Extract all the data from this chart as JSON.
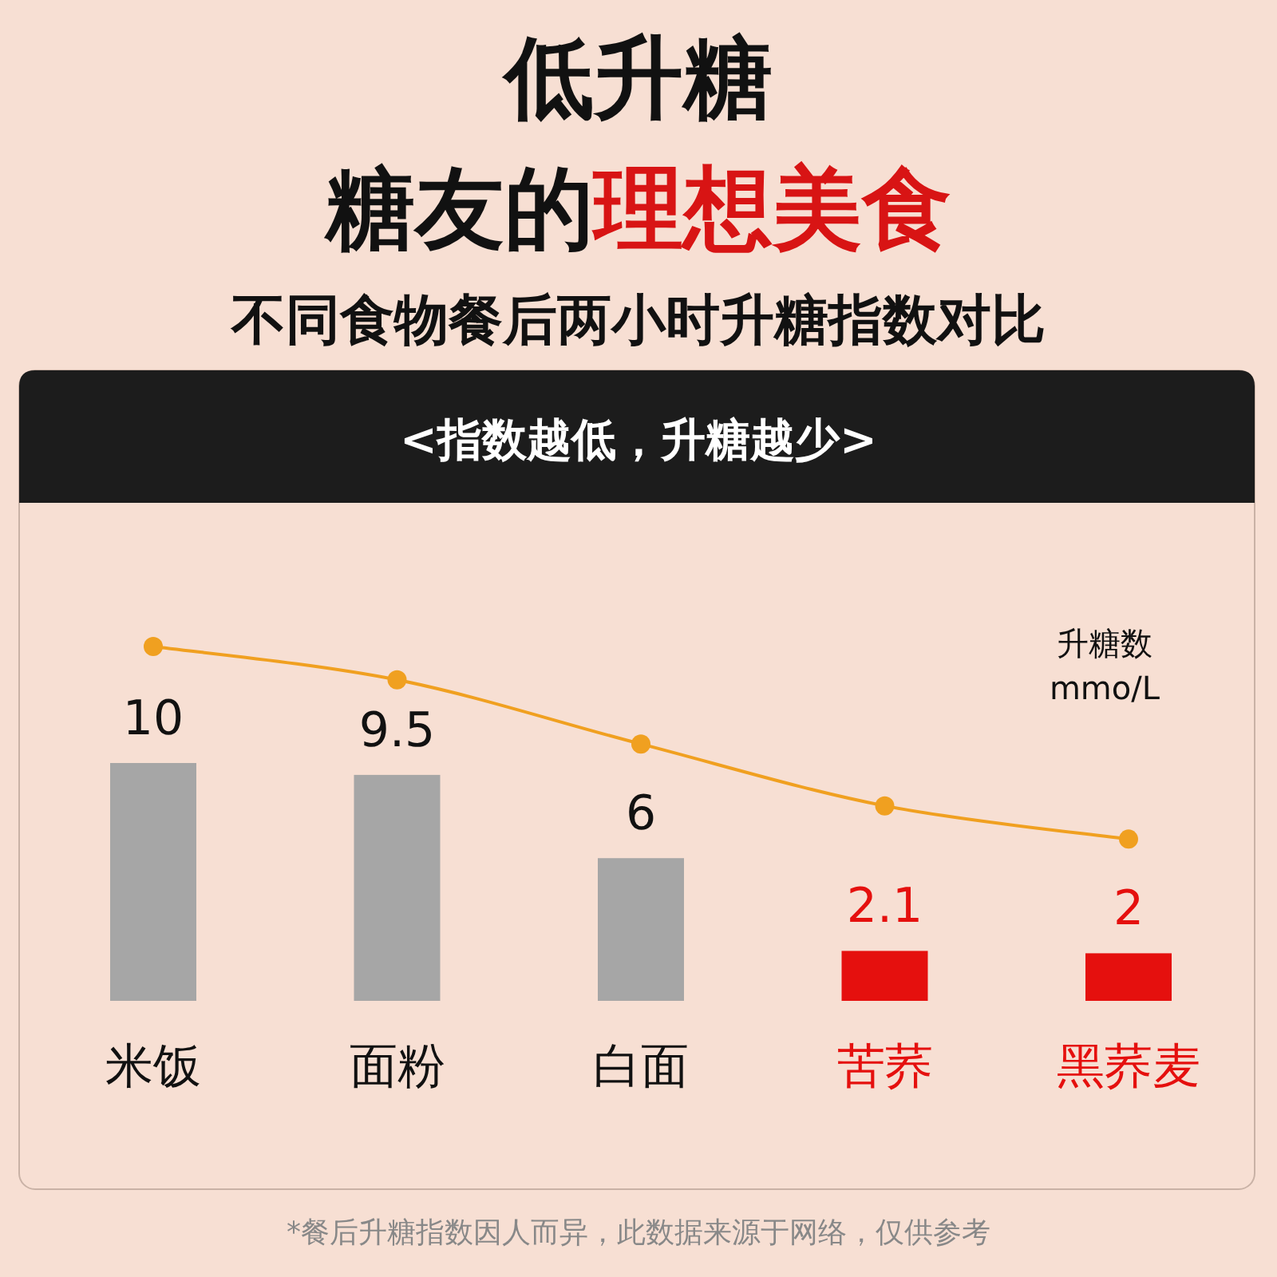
{
  "chart_data": {
    "type": "bar",
    "title": "低升糖",
    "subtitle": "糖友的理想美食",
    "ylabel": "升糖数 mmo/L",
    "annotations": [
      "不同食物餐后两小时升糖指数对比",
      "<指数越低，升糖越少>",
      "*餐后升糖指数因人而异，此数据来源于网络，仅供参考"
    ],
    "categories": [
      "米饭",
      "面粉",
      "白面",
      "苦荞",
      "黑荞麦"
    ],
    "series": [
      {
        "values": [
          10,
          9.5,
          6,
          2.1,
          2
        ],
        "colors": [
          "#a6a6a6",
          "#a6a6a6",
          "#a6a6a6",
          "#e5100e",
          "#e5100e"
        ],
        "data_labels": true
      },
      {
        "type": "line",
        "color": "#f0a020",
        "values": [
          14.9,
          13.5,
          10.8,
          8.2,
          6.8
        ],
        "marker": "circle"
      }
    ]
  }
}
